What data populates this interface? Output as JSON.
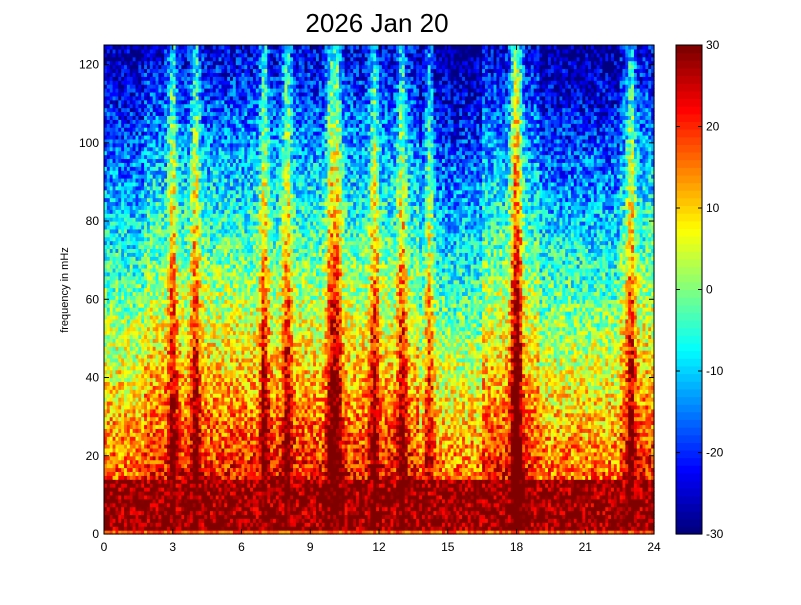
{
  "chart_data": {
    "type": "heatmap",
    "title": "2026 Jan 20",
    "xlabel": "",
    "ylabel": "frequency in mHz",
    "xlim": [
      0,
      24
    ],
    "ylim": [
      0,
      125
    ],
    "x_ticks": [
      0,
      3,
      6,
      9,
      12,
      15,
      18,
      21,
      24
    ],
    "y_ticks": [
      0,
      20,
      40,
      60,
      80,
      100,
      120
    ],
    "clim": [
      -30,
      30
    ],
    "colorbar_ticks": [
      30,
      20,
      10,
      0,
      -10,
      -20,
      -30
    ],
    "colormap": "jet",
    "x_bins_per_hour": 8,
    "y_bin_width": 1,
    "grid": false,
    "hot_band_hours": [
      3,
      4,
      7,
      8,
      9.9,
      10.2,
      11.8,
      13,
      14.2,
      17.9,
      18.1,
      23
    ]
  }
}
